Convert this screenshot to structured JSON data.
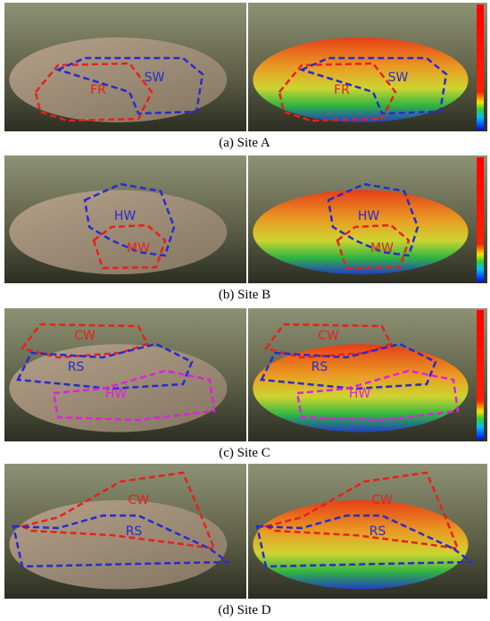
{
  "panels": [
    {
      "caption": "(a)  Site  A",
      "left_labels": [
        "FR",
        "SW"
      ],
      "right_labels": [
        "FR",
        "SW"
      ]
    },
    {
      "caption": "(b)  Site  B",
      "left_labels": [
        "HW",
        "MW"
      ],
      "right_labels": [
        "HW",
        "MW"
      ]
    },
    {
      "caption": "(c)  Site  C",
      "left_labels": [
        "CW",
        "RS",
        "HW"
      ],
      "right_labels": [
        "CW",
        "RS",
        "HW"
      ]
    },
    {
      "caption": "(d)  Site  D",
      "left_labels": [
        "CW",
        "RS"
      ],
      "right_labels": [
        "CW",
        "RS"
      ]
    }
  ]
}
